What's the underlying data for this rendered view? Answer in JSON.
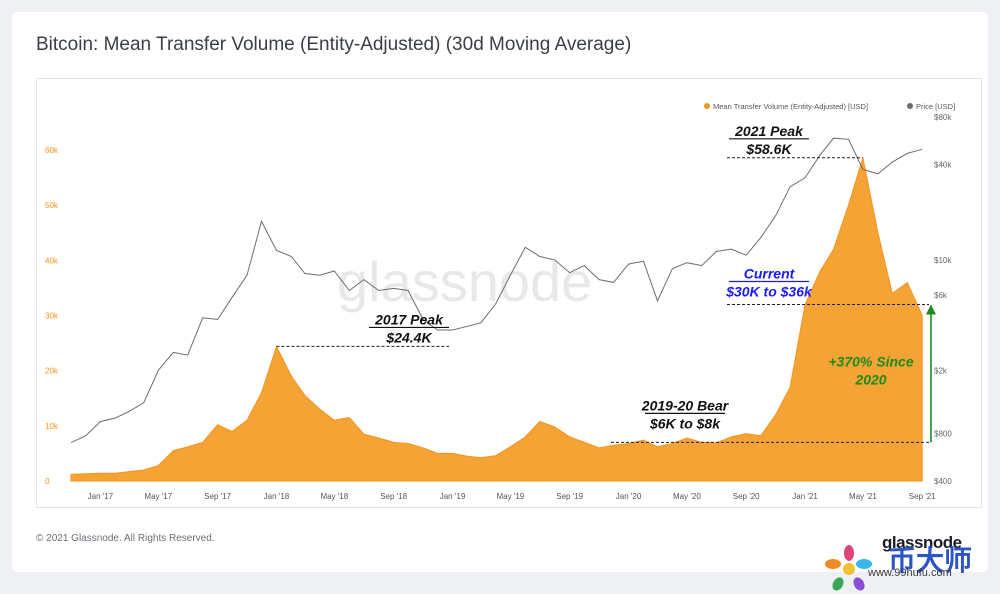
{
  "title": "Bitcoin: Mean Transfer Volume (Entity-Adjusted) (30d Moving Average)",
  "copyright": "© 2021 Glassnode. All Rights Reserved.",
  "brand": "glassnode",
  "watermark_text": "glassnode",
  "overlay_brand_cn": "币大师",
  "overlay_site": "www.99hufu.com",
  "colors": {
    "volume": "#f7931a",
    "volume_fill": "#f6a336",
    "price": "#6d6d6d",
    "annotation": "#111111",
    "current": "#1a1aff",
    "growth": "#1d8a1d"
  },
  "chart_data": {
    "type": "area",
    "series": [
      {
        "name": "Mean Transfer Volume (Entity-Adjusted) [USD]",
        "axis": "left",
        "points": [
          [
            "2016-11-01",
            1200
          ],
          [
            "2016-12-01",
            1300
          ],
          [
            "2017-01-01",
            1400
          ],
          [
            "2017-02-01",
            1400
          ],
          [
            "2017-03-01",
            1700
          ],
          [
            "2017-04-01",
            2000
          ],
          [
            "2017-05-01",
            2800
          ],
          [
            "2017-06-01",
            5500
          ],
          [
            "2017-07-01",
            6200
          ],
          [
            "2017-08-01",
            7000
          ],
          [
            "2017-09-01",
            10200
          ],
          [
            "2017-10-01",
            9000
          ],
          [
            "2017-11-01",
            11000
          ],
          [
            "2017-12-01",
            16000
          ],
          [
            "2018-01-01",
            24400
          ],
          [
            "2018-02-01",
            19000
          ],
          [
            "2018-03-01",
            15500
          ],
          [
            "2018-04-01",
            13000
          ],
          [
            "2018-05-01",
            11000
          ],
          [
            "2018-06-01",
            11500
          ],
          [
            "2018-07-01",
            8500
          ],
          [
            "2018-08-01",
            7800
          ],
          [
            "2018-09-01",
            7000
          ],
          [
            "2018-10-01",
            6800
          ],
          [
            "2018-11-01",
            6000
          ],
          [
            "2018-12-01",
            5000
          ],
          [
            "2019-01-01",
            5000
          ],
          [
            "2019-02-01",
            4500
          ],
          [
            "2019-03-01",
            4200
          ],
          [
            "2019-04-01",
            4600
          ],
          [
            "2019-05-01",
            6200
          ],
          [
            "2019-06-01",
            8000
          ],
          [
            "2019-07-01",
            10800
          ],
          [
            "2019-08-01",
            9800
          ],
          [
            "2019-09-01",
            8000
          ],
          [
            "2019-10-01",
            7000
          ],
          [
            "2019-11-01",
            6000
          ],
          [
            "2019-12-01",
            6500
          ],
          [
            "2020-01-01",
            6800
          ],
          [
            "2020-02-01",
            7400
          ],
          [
            "2020-03-01",
            6200
          ],
          [
            "2020-04-01",
            6800
          ],
          [
            "2020-05-01",
            7800
          ],
          [
            "2020-06-01",
            7000
          ],
          [
            "2020-07-01",
            6900
          ],
          [
            "2020-08-01",
            8000
          ],
          [
            "2020-09-01",
            8600
          ],
          [
            "2020-10-01",
            8200
          ],
          [
            "2020-11-01",
            12000
          ],
          [
            "2020-12-01",
            17000
          ],
          [
            "2021-01-01",
            32000
          ],
          [
            "2021-02-01",
            38000
          ],
          [
            "2021-03-01",
            42000
          ],
          [
            "2021-04-01",
            50000
          ],
          [
            "2021-05-01",
            58600
          ],
          [
            "2021-06-01",
            45000
          ],
          [
            "2021-07-01",
            34000
          ],
          [
            "2021-08-01",
            36000
          ],
          [
            "2021-09-01",
            30000
          ]
        ]
      },
      {
        "name": "Price [USD]",
        "axis": "right",
        "points": [
          [
            "2016-11-01",
            700
          ],
          [
            "2016-12-01",
            770
          ],
          [
            "2017-01-01",
            950
          ],
          [
            "2017-02-01",
            1000
          ],
          [
            "2017-03-01",
            1100
          ],
          [
            "2017-04-01",
            1250
          ],
          [
            "2017-05-01",
            2000
          ],
          [
            "2017-06-01",
            2600
          ],
          [
            "2017-07-01",
            2500
          ],
          [
            "2017-08-01",
            4300
          ],
          [
            "2017-09-01",
            4200
          ],
          [
            "2017-10-01",
            5800
          ],
          [
            "2017-11-01",
            8000
          ],
          [
            "2017-12-01",
            17500
          ],
          [
            "2018-01-01",
            11500
          ],
          [
            "2018-02-01",
            10500
          ],
          [
            "2018-03-01",
            8200
          ],
          [
            "2018-04-01",
            8000
          ],
          [
            "2018-05-01",
            8500
          ],
          [
            "2018-06-01",
            6400
          ],
          [
            "2018-07-01",
            7500
          ],
          [
            "2018-08-01",
            6400
          ],
          [
            "2018-09-01",
            6600
          ],
          [
            "2018-10-01",
            6400
          ],
          [
            "2018-11-01",
            4200
          ],
          [
            "2018-12-01",
            3600
          ],
          [
            "2019-01-01",
            3600
          ],
          [
            "2019-02-01",
            3800
          ],
          [
            "2019-03-01",
            4000
          ],
          [
            "2019-04-01",
            5300
          ],
          [
            "2019-05-01",
            8000
          ],
          [
            "2019-06-01",
            12000
          ],
          [
            "2019-07-01",
            10500
          ],
          [
            "2019-08-01",
            10000
          ],
          [
            "2019-09-01",
            8300
          ],
          [
            "2019-10-01",
            9200
          ],
          [
            "2019-11-01",
            7500
          ],
          [
            "2019-12-01",
            7200
          ],
          [
            "2020-01-01",
            9400
          ],
          [
            "2020-02-01",
            9800
          ],
          [
            "2020-03-01",
            5500
          ],
          [
            "2020-04-01",
            8800
          ],
          [
            "2020-05-01",
            9600
          ],
          [
            "2020-06-01",
            9200
          ],
          [
            "2020-07-01",
            11300
          ],
          [
            "2020-08-01",
            11700
          ],
          [
            "2020-09-01",
            10700
          ],
          [
            "2020-10-01",
            13800
          ],
          [
            "2020-11-01",
            19000
          ],
          [
            "2020-12-01",
            29000
          ],
          [
            "2021-01-01",
            33000
          ],
          [
            "2021-02-01",
            46000
          ],
          [
            "2021-03-01",
            58800
          ],
          [
            "2021-04-01",
            57800
          ],
          [
            "2021-05-01",
            37300
          ],
          [
            "2021-06-01",
            35000
          ],
          [
            "2021-07-01",
            41500
          ],
          [
            "2021-08-01",
            47100
          ],
          [
            "2021-09-01",
            50000
          ]
        ]
      }
    ],
    "x_ticks": [
      "Jan '17",
      "May '17",
      "Sep '17",
      "Jan '18",
      "May '18",
      "Sep '18",
      "Jan '19",
      "May '19",
      "Sep '19",
      "Jan '20",
      "May '20",
      "Sep '20",
      "Jan '21",
      "May '21",
      "Sep '21"
    ],
    "x_tick_dates": [
      "2017-01-01",
      "2017-05-01",
      "2017-09-01",
      "2018-01-01",
      "2018-05-01",
      "2018-09-01",
      "2019-01-01",
      "2019-05-01",
      "2019-09-01",
      "2020-01-01",
      "2020-05-01",
      "2020-09-01",
      "2021-01-01",
      "2021-05-01",
      "2021-09-01"
    ],
    "y_left_ticks": [
      "0",
      "10k",
      "20k",
      "30k",
      "40k",
      "50k",
      "60k"
    ],
    "y_left_values": [
      0,
      10000,
      20000,
      30000,
      40000,
      50000,
      60000
    ],
    "y_left_range": [
      0,
      66000
    ],
    "y_right_ticks": [
      "$400",
      "$800",
      "$2k",
      "$6k",
      "$10k",
      "$40k",
      "$80k"
    ],
    "y_right_values": [
      400,
      800,
      2000,
      6000,
      10000,
      40000,
      80000
    ],
    "y_right_scale": "log",
    "y_right_range": [
      400,
      80000
    ],
    "x_range": [
      "2016-11-01",
      "2021-09-15"
    ],
    "legend": [
      "Mean Transfer Volume (Entity-Adjusted) [USD]",
      "Price [USD]"
    ],
    "legend_position": "top-right",
    "annotations": {
      "peak_2021": {
        "line1": "2021 Peak",
        "line2": "$58.6K",
        "value": 58600
      },
      "peak_2017": {
        "line1": "2017 Peak",
        "line2": "$24.4K",
        "value": 24400
      },
      "bear": {
        "line1": "2019-20 Bear",
        "line2": "$6K to $8k",
        "value": 7000
      },
      "current": {
        "line1": "Current",
        "line2": "$30K to $36k",
        "value": 32000
      },
      "growth": {
        "line1": "+370% Since",
        "line2": "2020"
      }
    }
  }
}
